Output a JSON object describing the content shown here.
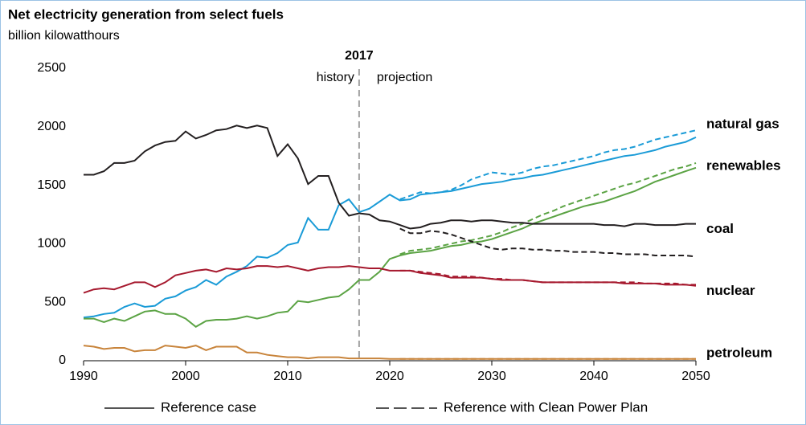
{
  "chart_data": {
    "type": "line",
    "title": "Net electricity generation from select fuels",
    "subtitle": "billion kilowatthours",
    "annotations": {
      "year": "2017",
      "history": "history",
      "projection": "projection",
      "divider_x": 2017
    },
    "x": [
      1990,
      1991,
      1992,
      1993,
      1994,
      1995,
      1996,
      1997,
      1998,
      1999,
      2000,
      2001,
      2002,
      2003,
      2004,
      2005,
      2006,
      2007,
      2008,
      2009,
      2010,
      2011,
      2012,
      2013,
      2014,
      2015,
      2016,
      2017,
      2018,
      2019,
      2020,
      2021,
      2022,
      2023,
      2024,
      2025,
      2026,
      2027,
      2028,
      2029,
      2030,
      2031,
      2032,
      2033,
      2034,
      2035,
      2036,
      2037,
      2038,
      2039,
      2040,
      2041,
      2042,
      2043,
      2044,
      2045,
      2046,
      2047,
      2048,
      2049,
      2050
    ],
    "line_styles": [
      {
        "label": "Reference case",
        "dashed": false
      },
      {
        "label": "Reference with Clean Power Plan",
        "dashed": true
      }
    ],
    "series": [
      {
        "name": "natural gas",
        "color": "#1a9bd7",
        "values": [
          370,
          380,
          400,
          410,
          460,
          490,
          460,
          470,
          530,
          550,
          600,
          630,
          690,
          650,
          720,
          760,
          810,
          890,
          880,
          920,
          990,
          1010,
          1220,
          1120,
          1120,
          1330,
          1380,
          1270,
          1300,
          1360,
          1420,
          1370,
          1380,
          1420,
          1430,
          1440,
          1450,
          1470,
          1490,
          1510,
          1520,
          1530,
          1550,
          1560,
          1580,
          1590,
          1610,
          1630,
          1650,
          1670,
          1690,
          1710,
          1730,
          1750,
          1760,
          1780,
          1800,
          1830,
          1850,
          1870,
          1910
        ],
        "cpp_values": [
          null,
          null,
          null,
          null,
          null,
          null,
          null,
          null,
          null,
          null,
          null,
          null,
          null,
          null,
          null,
          null,
          null,
          null,
          null,
          null,
          null,
          null,
          null,
          null,
          null,
          null,
          null,
          null,
          null,
          null,
          null,
          1380,
          1410,
          1440,
          1430,
          1440,
          1460,
          1500,
          1550,
          1580,
          1610,
          1600,
          1590,
          1610,
          1640,
          1660,
          1670,
          1690,
          1710,
          1730,
          1750,
          1780,
          1800,
          1810,
          1830,
          1860,
          1890,
          1910,
          1930,
          1950,
          1970
        ]
      },
      {
        "name": "renewables",
        "color": "#5ba344",
        "values": [
          360,
          360,
          330,
          360,
          340,
          380,
          420,
          430,
          400,
          400,
          360,
          290,
          340,
          350,
          350,
          360,
          380,
          360,
          380,
          410,
          420,
          510,
          500,
          520,
          540,
          550,
          610,
          690,
          690,
          760,
          870,
          900,
          920,
          930,
          940,
          960,
          980,
          990,
          1010,
          1020,
          1040,
          1070,
          1100,
          1130,
          1170,
          1200,
          1230,
          1260,
          1290,
          1320,
          1340,
          1360,
          1390,
          1420,
          1450,
          1490,
          1530,
          1560,
          1590,
          1620,
          1650
        ],
        "cpp_values": [
          null,
          null,
          null,
          null,
          null,
          null,
          null,
          null,
          null,
          null,
          null,
          null,
          null,
          null,
          null,
          null,
          null,
          null,
          null,
          null,
          null,
          null,
          null,
          null,
          null,
          null,
          null,
          null,
          null,
          null,
          null,
          910,
          940,
          950,
          960,
          980,
          1000,
          1020,
          1030,
          1050,
          1070,
          1100,
          1140,
          1170,
          1210,
          1250,
          1280,
          1320,
          1350,
          1380,
          1410,
          1440,
          1470,
          1500,
          1520,
          1550,
          1580,
          1610,
          1640,
          1660,
          1690
        ]
      },
      {
        "name": "coal",
        "color": "#231f20",
        "values": [
          1590,
          1590,
          1620,
          1690,
          1690,
          1710,
          1790,
          1840,
          1870,
          1880,
          1960,
          1900,
          1930,
          1970,
          1980,
          2010,
          1990,
          2010,
          1990,
          1750,
          1850,
          1730,
          1510,
          1580,
          1580,
          1350,
          1240,
          1260,
          1250,
          1200,
          1190,
          1160,
          1130,
          1140,
          1170,
          1180,
          1200,
          1200,
          1190,
          1200,
          1200,
          1190,
          1180,
          1180,
          1170,
          1170,
          1170,
          1170,
          1170,
          1170,
          1170,
          1160,
          1160,
          1150,
          1170,
          1170,
          1160,
          1160,
          1160,
          1170,
          1170
        ],
        "cpp_values": [
          null,
          null,
          null,
          null,
          null,
          null,
          null,
          null,
          null,
          null,
          null,
          null,
          null,
          null,
          null,
          null,
          null,
          null,
          null,
          null,
          null,
          null,
          null,
          null,
          null,
          null,
          null,
          null,
          null,
          null,
          null,
          1130,
          1090,
          1090,
          1110,
          1100,
          1080,
          1050,
          1020,
          990,
          960,
          950,
          960,
          960,
          950,
          950,
          940,
          940,
          930,
          930,
          930,
          920,
          920,
          910,
          910,
          910,
          900,
          900,
          900,
          900,
          890
        ]
      },
      {
        "name": "nuclear",
        "color": "#a6192e",
        "values": [
          580,
          610,
          620,
          610,
          640,
          670,
          670,
          630,
          670,
          730,
          750,
          770,
          780,
          760,
          790,
          780,
          790,
          810,
          810,
          800,
          810,
          790,
          770,
          790,
          800,
          800,
          810,
          800,
          790,
          790,
          770,
          770,
          770,
          750,
          740,
          730,
          710,
          710,
          710,
          710,
          700,
          690,
          690,
          690,
          680,
          670,
          670,
          670,
          670,
          670,
          670,
          670,
          670,
          660,
          660,
          660,
          660,
          650,
          650,
          650,
          640
        ],
        "cpp_values": [
          null,
          null,
          null,
          null,
          null,
          null,
          null,
          null,
          null,
          null,
          null,
          null,
          null,
          null,
          null,
          null,
          null,
          null,
          null,
          null,
          null,
          null,
          null,
          null,
          null,
          null,
          null,
          null,
          null,
          null,
          null,
          770,
          770,
          760,
          750,
          740,
          720,
          720,
          720,
          710,
          700,
          700,
          690,
          690,
          680,
          670,
          670,
          670,
          670,
          670,
          670,
          670,
          670,
          670,
          670,
          660,
          660,
          660,
          660,
          650,
          650
        ]
      },
      {
        "name": "petroleum",
        "color": "#c8843b",
        "values": [
          130,
          120,
          100,
          110,
          110,
          80,
          90,
          90,
          130,
          120,
          110,
          130,
          90,
          120,
          120,
          120,
          70,
          70,
          50,
          40,
          30,
          30,
          20,
          30,
          30,
          30,
          20,
          20,
          20,
          20,
          15,
          15,
          15,
          15,
          15,
          15,
          15,
          15,
          15,
          15,
          15,
          15,
          15,
          15,
          15,
          15,
          15,
          15,
          15,
          15,
          15,
          15,
          15,
          15,
          15,
          15,
          15,
          15,
          15,
          15,
          15
        ],
        "cpp_values": [
          null,
          null,
          null,
          null,
          null,
          null,
          null,
          null,
          null,
          null,
          null,
          null,
          null,
          null,
          null,
          null,
          null,
          null,
          null,
          null,
          null,
          null,
          null,
          null,
          null,
          null,
          null,
          null,
          null,
          null,
          null,
          15,
          15,
          15,
          15,
          15,
          15,
          15,
          15,
          15,
          15,
          15,
          15,
          15,
          15,
          15,
          15,
          15,
          15,
          15,
          15,
          15,
          15,
          15,
          15,
          15,
          15,
          15,
          15,
          15,
          15
        ]
      }
    ],
    "xlim": [
      1990,
      2050
    ],
    "xticks": [
      1990,
      2000,
      2010,
      2020,
      2030,
      2040,
      2050
    ],
    "ylim": [
      0,
      2500
    ],
    "yticks": [
      0,
      500,
      1000,
      1500,
      2000,
      2500
    ],
    "grid": false
  }
}
